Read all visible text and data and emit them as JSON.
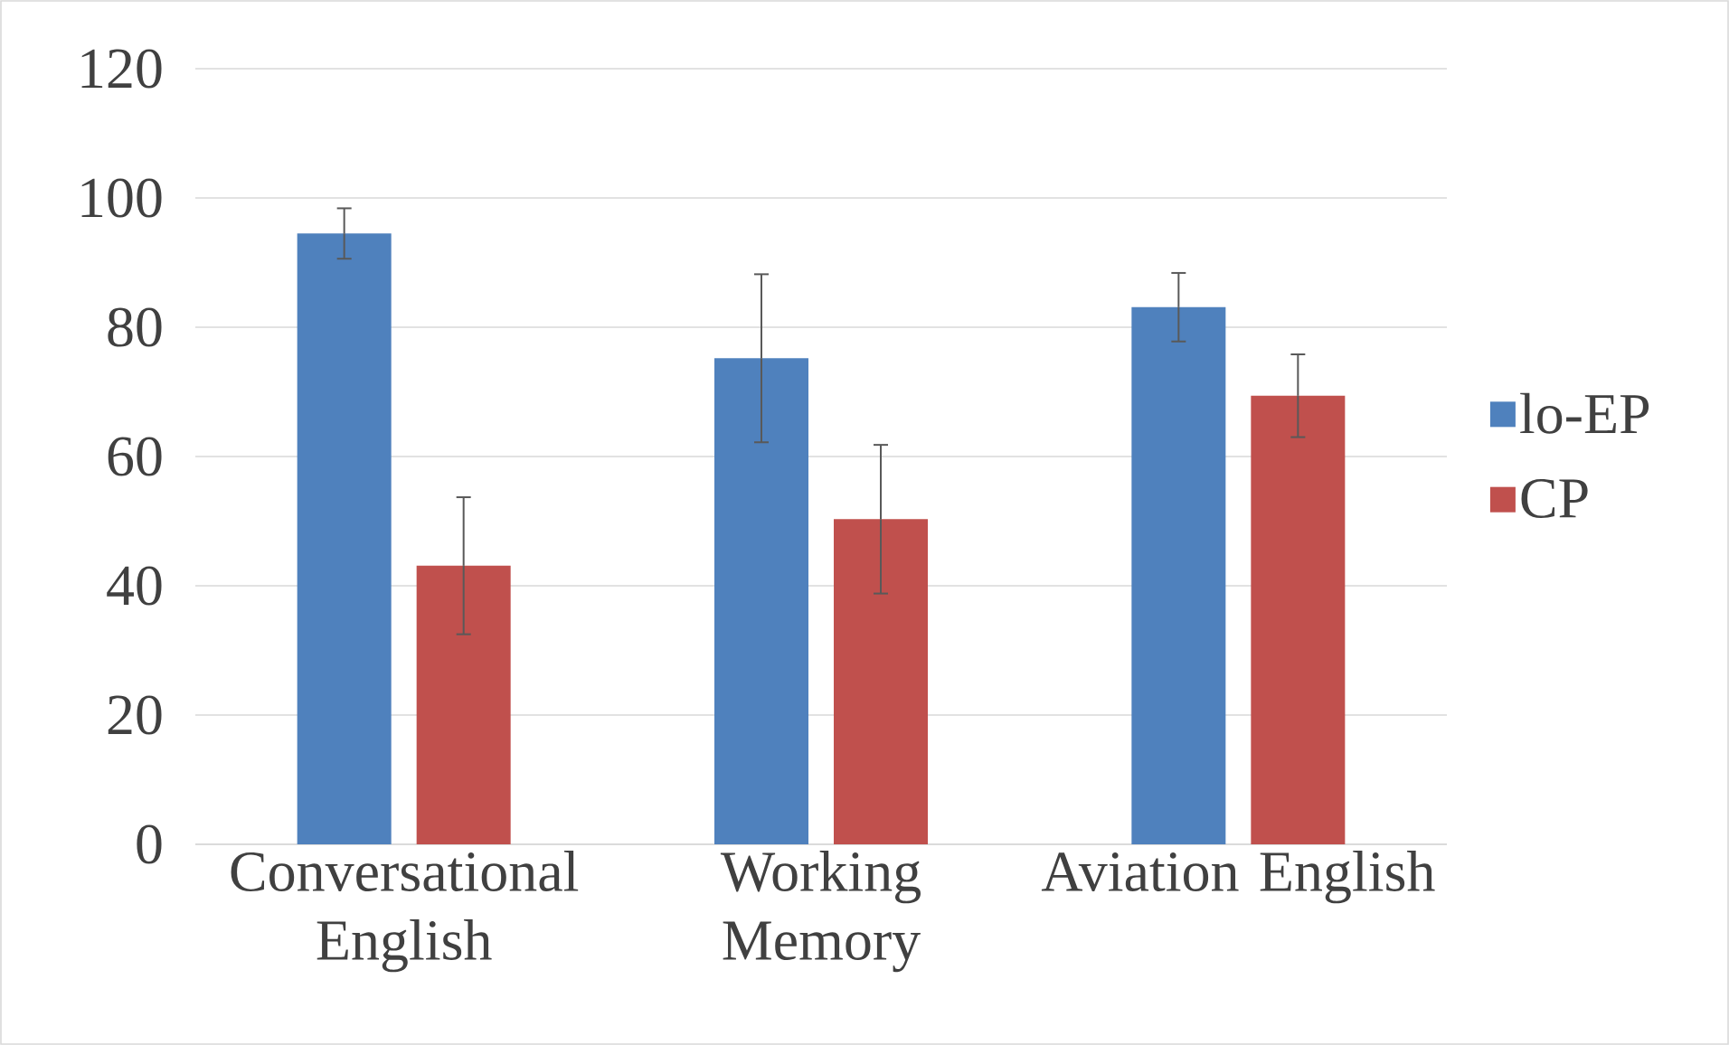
{
  "chart_data": {
    "type": "bar",
    "categories": [
      "Conversational English",
      "Working Memory",
      "Aviation English"
    ],
    "series": [
      {
        "name": "lo-EP",
        "color": "#4f81bd",
        "values": [
          94.5,
          75.2,
          83.1
        ],
        "errors": [
          3.9,
          13,
          5.3
        ]
      },
      {
        "name": "CP",
        "color": "#c0504d",
        "values": [
          43.1,
          50.3,
          69.4
        ],
        "errors": [
          10.6,
          11.5,
          6.4
        ]
      }
    ],
    "ylim": [
      0,
      120
    ],
    "yticks": [
      0,
      20,
      40,
      60,
      80,
      100,
      120
    ],
    "grid": "y",
    "legend": "right"
  }
}
